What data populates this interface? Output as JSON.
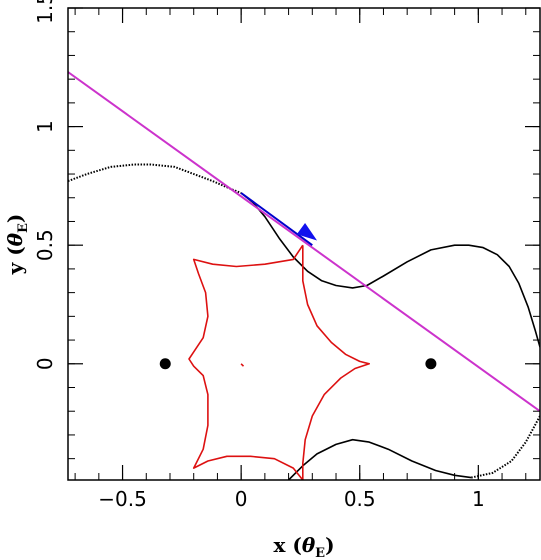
{
  "chart_data": {
    "type": "line",
    "xlabel_main": "x (",
    "xlabel_theta": "θ",
    "xlabel_sub": "E",
    "xlabel_close": ")",
    "ylabel_main": "y (",
    "ylabel_theta": "θ",
    "ylabel_sub": "E",
    "ylabel_close": ")",
    "xlim": [
      -0.73,
      1.26
    ],
    "ylim": [
      -0.49,
      1.5
    ],
    "x_ticks": [
      {
        "value": -0.5,
        "label": "−0.5"
      },
      {
        "value": 0,
        "label": "0"
      },
      {
        "value": 0.5,
        "label": "0.5"
      },
      {
        "value": 1,
        "label": "1"
      }
    ],
    "y_ticks": [
      {
        "value": 0,
        "label": "0"
      },
      {
        "value": 0.5,
        "label": "0.5"
      },
      {
        "value": 1,
        "label": "1"
      },
      {
        "value": 1.5,
        "label": "1.5"
      }
    ],
    "x_minor_step": 0.1,
    "y_minor_step": 0.1,
    "grid": false,
    "colors": {
      "caustic": "#dd1111",
      "light_curve_track": "#000000",
      "source_trajectory": "#cc33cc",
      "trajectory_segment": "#0000cc",
      "arrow": "#1111ee",
      "lens": "#000000"
    },
    "lenses": [
      {
        "x": -0.32,
        "y": 0.0
      },
      {
        "x": 0.8,
        "y": 0.0
      }
    ],
    "source_trajectory": [
      [
        -0.73,
        1.23
      ],
      [
        1.26,
        -0.2
      ]
    ],
    "trajectory_segment": [
      [
        0.0,
        0.72
      ],
      [
        0.3,
        0.5
      ]
    ],
    "arrow_tip": [
      0.32,
      0.52
    ],
    "caustic": [
      [
        0.26,
        0.5
      ],
      [
        0.22,
        0.44
      ],
      [
        0.1,
        0.42
      ],
      [
        -0.02,
        0.41
      ],
      [
        -0.12,
        0.42
      ],
      [
        -0.2,
        0.44
      ],
      [
        -0.18,
        0.38
      ],
      [
        -0.15,
        0.3
      ],
      [
        -0.14,
        0.2
      ],
      [
        -0.16,
        0.11
      ],
      [
        -0.2,
        0.05
      ],
      [
        -0.22,
        0.02
      ],
      [
        -0.2,
        -0.01
      ],
      [
        -0.16,
        -0.05
      ],
      [
        -0.14,
        -0.13
      ],
      [
        -0.14,
        -0.26
      ],
      [
        -0.16,
        -0.36
      ],
      [
        -0.19,
        -0.42
      ],
      [
        -0.2,
        -0.44
      ],
      [
        -0.14,
        -0.41
      ],
      [
        -0.06,
        -0.39
      ],
      [
        0.04,
        -0.39
      ],
      [
        0.14,
        -0.4
      ],
      [
        0.22,
        -0.44
      ],
      [
        0.26,
        -0.49
      ],
      [
        0.26,
        -0.42
      ],
      [
        0.27,
        -0.32
      ],
      [
        0.3,
        -0.22
      ],
      [
        0.35,
        -0.13
      ],
      [
        0.42,
        -0.06
      ],
      [
        0.48,
        -0.02
      ],
      [
        0.54,
        0.0
      ],
      [
        0.5,
        0.01
      ],
      [
        0.44,
        0.04
      ],
      [
        0.38,
        0.09
      ],
      [
        0.32,
        0.16
      ],
      [
        0.28,
        0.25
      ],
      [
        0.26,
        0.35
      ],
      [
        0.26,
        0.43
      ],
      [
        0.26,
        0.5
      ]
    ],
    "caustic_small": [
      [
        0.0,
        0.0
      ],
      [
        0.01,
        -0.01
      ]
    ],
    "critical_upper_dotted": [
      [
        -0.73,
        0.77
      ],
      [
        -0.65,
        0.8
      ],
      [
        -0.55,
        0.83
      ],
      [
        -0.45,
        0.84
      ],
      [
        -0.38,
        0.84
      ],
      [
        -0.28,
        0.83
      ],
      [
        -0.2,
        0.8
      ],
      [
        -0.12,
        0.77
      ],
      [
        -0.05,
        0.74
      ],
      [
        0.0,
        0.72
      ]
    ],
    "critical_upper_solid": [
      [
        0.0,
        0.72
      ],
      [
        0.05,
        0.68
      ],
      [
        0.1,
        0.62
      ],
      [
        0.16,
        0.53
      ],
      [
        0.22,
        0.45
      ],
      [
        0.28,
        0.39
      ],
      [
        0.34,
        0.35
      ],
      [
        0.4,
        0.33
      ],
      [
        0.47,
        0.32
      ],
      [
        0.53,
        0.33
      ],
      [
        0.6,
        0.37
      ],
      [
        0.7,
        0.43
      ],
      [
        0.8,
        0.48
      ],
      [
        0.9,
        0.5
      ],
      [
        0.96,
        0.5
      ],
      [
        1.02,
        0.49
      ],
      [
        1.08,
        0.46
      ],
      [
        1.13,
        0.41
      ],
      [
        1.17,
        0.34
      ],
      [
        1.21,
        0.24
      ],
      [
        1.24,
        0.14
      ],
      [
        1.26,
        0.07
      ]
    ],
    "critical_lower_solid": [
      [
        0.2,
        -0.49
      ],
      [
        0.26,
        -0.43
      ],
      [
        0.32,
        -0.38
      ],
      [
        0.4,
        -0.34
      ],
      [
        0.47,
        -0.32
      ],
      [
        0.54,
        -0.33
      ],
      [
        0.62,
        -0.36
      ],
      [
        0.72,
        -0.41
      ],
      [
        0.82,
        -0.45
      ],
      [
        0.9,
        -0.47
      ],
      [
        0.97,
        -0.48
      ]
    ],
    "critical_lower_dotted": [
      [
        0.97,
        -0.48
      ],
      [
        1.06,
        -0.46
      ],
      [
        1.14,
        -0.41
      ],
      [
        1.2,
        -0.33
      ],
      [
        1.26,
        -0.22
      ]
    ]
  }
}
